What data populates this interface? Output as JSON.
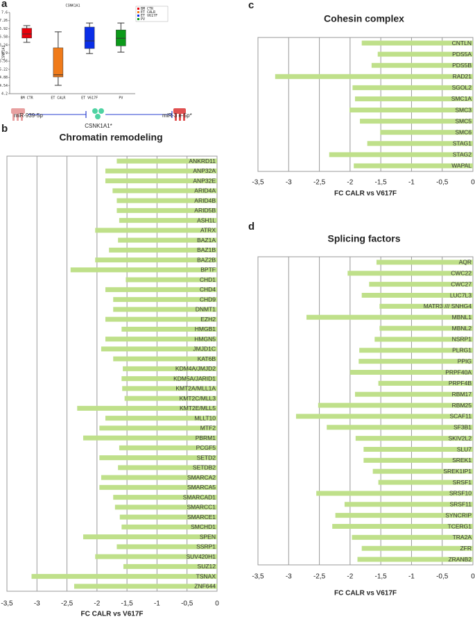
{
  "chart_data": [
    {
      "type": "box",
      "panel_label": "a",
      "title": "CSNK1A1",
      "ylabel": "CSNK1A1",
      "ylim": [
        4.2,
        7.6
      ],
      "yticks": [
        4.2,
        4.54,
        4.88,
        5.22,
        5.56,
        5.9,
        6.24,
        6.58,
        6.92,
        7.26,
        7.6
      ],
      "series": [
        {
          "name": "BM CTR",
          "color": "#e8000b",
          "whislo": 6.35,
          "q1": 6.53,
          "med": 6.7,
          "q3": 6.94,
          "whishi": 7.05
        },
        {
          "name": "ET CALR",
          "color": "#f07b1a",
          "whislo": 4.55,
          "q1": 4.9,
          "med": 4.99,
          "q3": 6.12,
          "whishi": 6.79
        },
        {
          "name": "ET V617F",
          "color": "#0a2ee8",
          "whislo": 5.88,
          "q1": 6.09,
          "med": 6.41,
          "q3": 6.99,
          "whishi": 7.16
        },
        {
          "name": "PV",
          "color": "#0c9a1a",
          "whislo": 5.94,
          "q1": 6.2,
          "med": 6.52,
          "q3": 6.87,
          "whishi": 7.16
        }
      ]
    },
    {
      "type": "bar",
      "horizontal": true,
      "panel_label": "b",
      "title": "Chromatin remodeling",
      "xlabel": "FC CALR vs V617F",
      "color": "#bfe08a",
      "grid": true,
      "xlim": [
        -3.5,
        0
      ],
      "xticks": [
        {
          "value": -3.5,
          "label": "-3,5"
        },
        -3,
        {
          "value": -2.5,
          "label": "-2,5"
        },
        -2,
        {
          "value": -1.5,
          "label": "-1,5"
        },
        -1,
        {
          "value": -0.5,
          "label": "-0,5"
        },
        0
      ],
      "categories": [
        "ANKRD11",
        "ANP32A",
        "ANP32E",
        "ARID4A",
        "ARID4B",
        "ARID5B",
        "ASH1L",
        "ATRX",
        "BAZ1A",
        "BAZ1B",
        "BAZ2B",
        "BPTF",
        "CHD1",
        "CHD4",
        "CHD9",
        "DNMT1",
        "EZH2",
        "HMGB1",
        "HMGN5",
        "JMJD1C",
        "KAT6B",
        "KDM4A/JMJD2",
        "KDM5A/JARID1",
        "KMT2A/MLL1A",
        "KMT2C/MLL3",
        "KMT2E/MLL5",
        "MLLT10",
        "MTF2",
        "PBRM1",
        "PCGF5",
        "SETD2",
        "SETDB2",
        "SMARCA2",
        "SMARCA5",
        "SMARCAD1",
        "SMARCC1",
        "SMARCE1",
        "SMCHD1",
        "SPEN",
        "SSRP1",
        "SUV420H1",
        "SUZ12",
        "TSNAX",
        "ZNF644"
      ],
      "values": [
        -1.67,
        -1.86,
        -1.86,
        -1.74,
        -1.67,
        -1.67,
        -1.63,
        -2.03,
        -1.65,
        -1.8,
        -2.03,
        -2.44,
        -1.52,
        -1.86,
        -1.73,
        -1.73,
        -1.86,
        -1.59,
        -1.86,
        -1.93,
        -1.73,
        -1.57,
        -1.59,
        -1.58,
        -1.54,
        -2.33,
        -1.86,
        -1.96,
        -2.23,
        -1.63,
        -1.96,
        -1.65,
        -1.93,
        -1.96,
        -1.73,
        -1.7,
        -1.62,
        -1.59,
        -2.23,
        -1.67,
        -2.03,
        -1.56,
        -3.09,
        -2.38
      ]
    },
    {
      "type": "bar",
      "horizontal": true,
      "panel_label": "c",
      "title": "Cohesin complex",
      "xlabel": "FC CALR vs V617F",
      "color": "#bfe08a",
      "grid": true,
      "xlim": [
        -3.5,
        0
      ],
      "xticks": [
        {
          "value": -3.5,
          "label": "-3,5"
        },
        -3,
        {
          "value": -2.5,
          "label": "-2,5"
        },
        -2,
        {
          "value": -1.5,
          "label": "-1,5"
        },
        -1,
        {
          "value": -0.5,
          "label": "-0,5"
        },
        0
      ],
      "categories": [
        "CNTLN",
        "PDS5A",
        "PDS5B",
        "RAD21",
        "SGOL2",
        "SMC1A",
        "SMC3",
        "SMC5",
        "SMC6",
        "STAG1",
        "STAG2",
        "WAPAL"
      ],
      "values": [
        -1.81,
        -1.55,
        -1.65,
        -3.22,
        -1.96,
        -1.92,
        -2.01,
        -1.84,
        -1.51,
        -1.72,
        -2.34,
        -1.94
      ]
    },
    {
      "type": "bar",
      "horizontal": true,
      "panel_label": "d",
      "title": "Splicing factors",
      "xlabel": "FC CALR vs V617F",
      "color": "#bfe08a",
      "grid": true,
      "xlim": [
        -3.5,
        0
      ],
      "xticks": [
        {
          "value": -3.5,
          "label": "-3,5"
        },
        -3,
        {
          "value": -2.5,
          "label": "-2,5"
        },
        -2,
        {
          "value": -1.5,
          "label": "-1,5"
        },
        -1,
        {
          "value": -0.5,
          "label": "-0,5"
        },
        0
      ],
      "categories": [
        "AQR",
        "CWC22",
        "CWC27",
        "LUC7L3",
        "MATR3 /// SNHG4",
        "MBNL1",
        "MBNL2",
        "NSRP1",
        "PLRG1",
        "PPIG",
        "PRPF40A",
        "PRPF4B",
        "RBM17",
        "RBM25",
        "SCAF11",
        "SF3B1",
        "SKIV2L2",
        "SLU7",
        "SREK1",
        "SREK1IP1",
        "SRSF1",
        "SRSF10",
        "SRSF11",
        "SYNCRIP",
        "TCERG1",
        "TRA2A",
        "ZFR",
        "ZRANB2"
      ],
      "values": [
        -1.57,
        -2.04,
        -1.69,
        -1.81,
        -1.52,
        -2.71,
        -1.52,
        -1.6,
        -1.85,
        -1.86,
        -2.0,
        -1.54,
        -1.92,
        -2.52,
        -2.88,
        -2.38,
        -1.91,
        -1.78,
        -1.78,
        -1.63,
        -1.54,
        -2.55,
        -2.09,
        -2.24,
        -2.29,
        -1.97,
        -1.81,
        -1.88
      ]
    }
  ],
  "diagram": {
    "nodes": [
      {
        "label": "miR-939-5p"
      },
      {
        "label": "CSNK1A1*"
      },
      {
        "label": "miR-3 e-5p*"
      }
    ]
  }
}
